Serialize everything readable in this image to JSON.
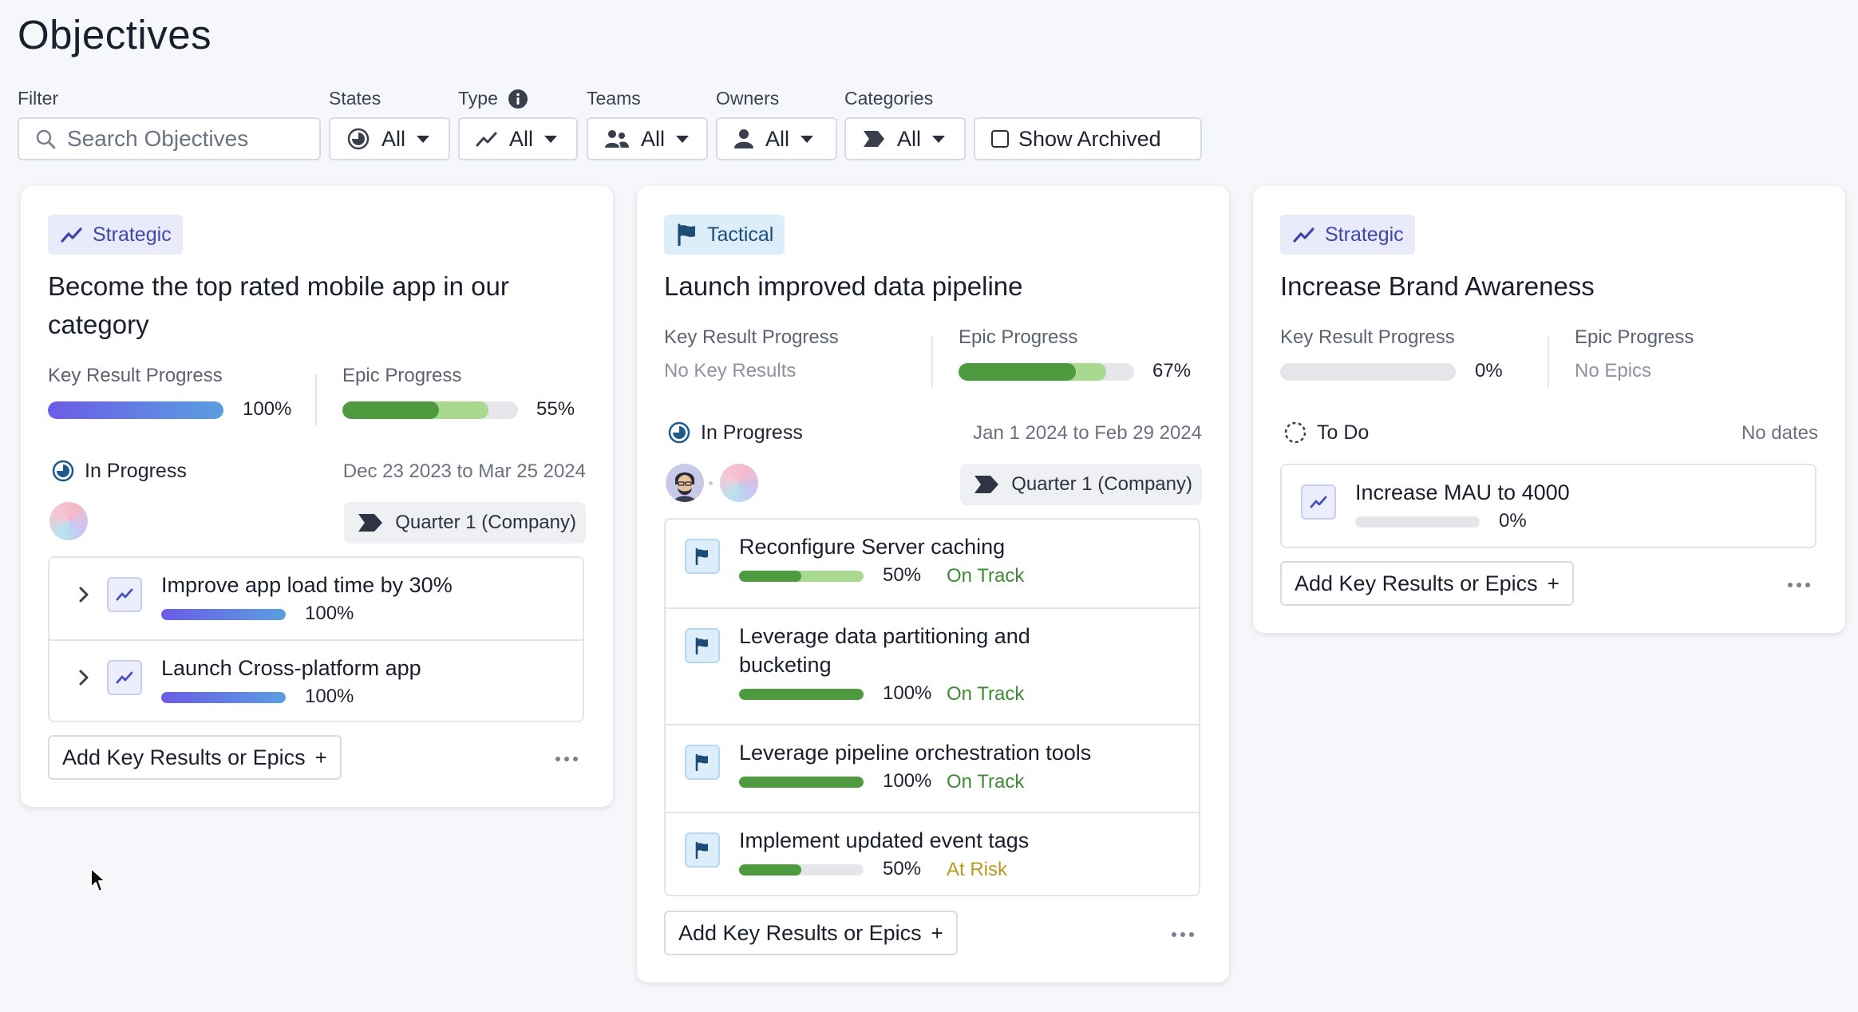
{
  "page": {
    "title": "Objectives"
  },
  "filters": {
    "filter_label": "Filter",
    "search_placeholder": "Search Objectives",
    "states": {
      "label": "States",
      "value": "All"
    },
    "type": {
      "label": "Type",
      "value": "All"
    },
    "teams": {
      "label": "Teams",
      "value": "All"
    },
    "owners": {
      "label": "Owners",
      "value": "All"
    },
    "categories": {
      "label": "Categories",
      "value": "All"
    },
    "show_archived": "Show Archived",
    "show_archived_checked": false
  },
  "common": {
    "key_result_progress": "Key Result Progress",
    "epic_progress": "Epic Progress",
    "add_button": "Add Key Results or Epics",
    "add_plus": "+"
  },
  "colors": {
    "strategic_badge_text": "#3f47a8",
    "tactical_badge_text": "#1d4d76",
    "kr_gradient_start": "#6b5ce7",
    "kr_gradient_end": "#5a9ee0",
    "epic_done": "#4e9a3f",
    "epic_in_progress": "#a9d88f",
    "on_track": "#3e8a35",
    "at_risk": "#b99a20"
  },
  "cards": [
    {
      "type": "Strategic",
      "type_icon": "trend-up-icon",
      "title": "Become the top rated mobile app in our category",
      "key_result": {
        "progress": 1.0,
        "pct": "100%",
        "empty_text": ""
      },
      "epic": {
        "done": 0.55,
        "in_progress": 0.83,
        "pct": "55%",
        "empty_text": ""
      },
      "status": "In Progress",
      "status_icon": "in-progress-icon",
      "dates": "Dec 23 2023 to Mar 25 2024",
      "quarter": "Quarter 1 (Company)",
      "items": [
        {
          "kind": "key-result",
          "title": "Improve app load time by 30%",
          "progress": 1.0,
          "pct": "100%",
          "status": ""
        },
        {
          "kind": "key-result",
          "title": "Launch Cross-platform app",
          "progress": 1.0,
          "pct": "100%",
          "status": ""
        }
      ]
    },
    {
      "type": "Tactical",
      "type_icon": "flag-icon",
      "title": "Launch improved data pipeline",
      "key_result": {
        "progress": null,
        "pct": "",
        "empty_text": "No Key Results"
      },
      "epic": {
        "done": 0.67,
        "in_progress": 0.84,
        "pct": "67%",
        "empty_text": ""
      },
      "status": "In Progress",
      "status_icon": "in-progress-icon",
      "dates": "Jan 1 2024 to Feb 29 2024",
      "quarter": "Quarter 1 (Company)",
      "items": [
        {
          "kind": "epic",
          "title": "Reconfigure Server caching",
          "progress": 0.5,
          "in_progress": 1.0,
          "pct": "50%",
          "status": "On Track"
        },
        {
          "kind": "epic",
          "title": "Leverage data partitioning and bucketing",
          "progress": 1.0,
          "in_progress": 1.0,
          "pct": "100%",
          "status": "On Track"
        },
        {
          "kind": "epic",
          "title": "Leverage pipeline orchestration tools",
          "progress": 1.0,
          "in_progress": 1.0,
          "pct": "100%",
          "status": "On Track"
        },
        {
          "kind": "epic",
          "title": "Implement updated event tags",
          "progress": 0.5,
          "in_progress": 0.5,
          "pct": "50%",
          "status": "At Risk"
        }
      ]
    },
    {
      "type": "Strategic",
      "type_icon": "trend-up-icon",
      "title": "Increase Brand Awareness",
      "key_result": {
        "progress": 0.0,
        "pct": "0%",
        "empty_text": ""
      },
      "epic": {
        "done": null,
        "in_progress": null,
        "pct": "",
        "empty_text": "No Epics"
      },
      "status": "To Do",
      "status_icon": "to-do-icon",
      "dates": "No dates",
      "quarter": "",
      "items": [
        {
          "kind": "key-result",
          "title": "Increase MAU to 4000",
          "progress": 0.0,
          "pct": "0%",
          "status": ""
        }
      ]
    }
  ]
}
